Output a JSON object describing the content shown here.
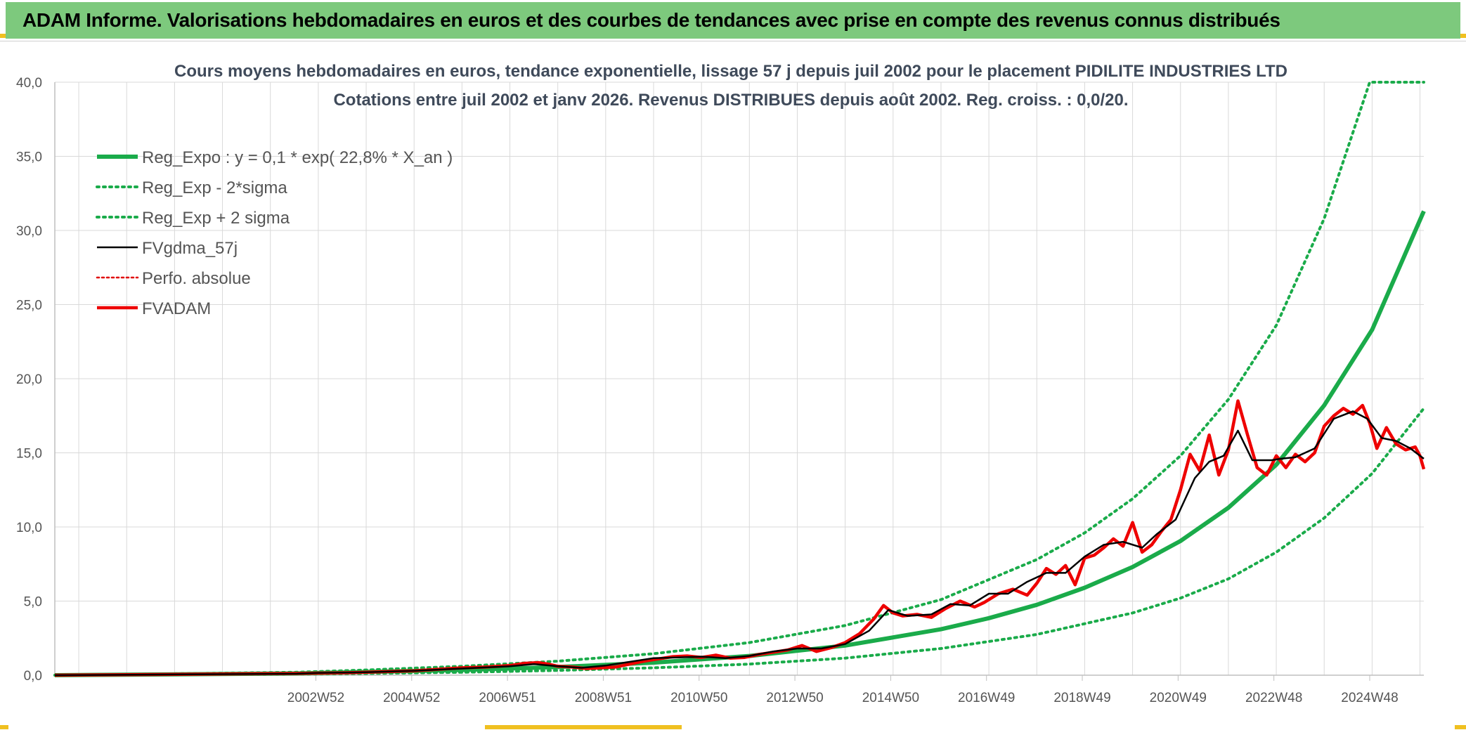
{
  "header": {
    "title": "ADAM Informe. Valorisations hebdomadaires en euros et des courbes de tendances avec prise en compte des revenus connus distribués"
  },
  "colors": {
    "header_bg": "#7dc97d",
    "reg_expo": "#1aab4a",
    "sigma": "#1aab4a",
    "fvgdma": "#000000",
    "perfo": "#e00000",
    "fvadam": "#ee0000",
    "grid": "#d9d9d9",
    "accent": "#f0c020"
  },
  "chart_data": {
    "type": "line",
    "title": "Cours moyens hebdomadaires en euros, tendance exponentielle, lissage 57 j depuis juil 2002 pour le placement PIDILITE INDUSTRIES LTD",
    "subtitle": "Cotations entre juil 2002 et janv 2026. Revenus DISTRIBUES depuis août 2002. Reg. croiss. : 0,0/20.",
    "xlabel": "",
    "ylabel": "",
    "ylim": [
      0,
      40
    ],
    "y_ticks": [
      "0,0",
      "5,0",
      "10,0",
      "15,0",
      "20,0",
      "25,0",
      "30,0",
      "35,0",
      "40,0"
    ],
    "x_range": [
      1997.5,
      2026.08
    ],
    "x_tick_labels": [
      {
        "label": "2002W52",
        "x": 2002.95
      },
      {
        "label": "2004W52",
        "x": 2004.95
      },
      {
        "label": "2006W51",
        "x": 2006.95
      },
      {
        "label": "2008W51",
        "x": 2008.95
      },
      {
        "label": "2010W50",
        "x": 2010.95
      },
      {
        "label": "2012W50",
        "x": 2012.95
      },
      {
        "label": "2014W50",
        "x": 2014.95
      },
      {
        "label": "2016W49",
        "x": 2016.95
      },
      {
        "label": "2018W49",
        "x": 2018.95
      },
      {
        "label": "2020W49",
        "x": 2020.95
      },
      {
        "label": "2022W48",
        "x": 2022.95
      },
      {
        "label": "2024W48",
        "x": 2024.95
      }
    ],
    "legend": {
      "position": "top-left",
      "entries": [
        {
          "key": "reg_expo",
          "label": "Reg_Expo : y = 0,1 * exp( 22,8% *  X_an )",
          "style": "solid-thick"
        },
        {
          "key": "reg_minus",
          "label": "Reg_Exp - 2*sigma",
          "style": "dotted"
        },
        {
          "key": "reg_plus",
          "label": "Reg_Exp + 2 sigma",
          "style": "dotted"
        },
        {
          "key": "fvgdma",
          "label": "FVgdma_57j",
          "style": "solid"
        },
        {
          "key": "perfo",
          "label": "Perfo. absolue",
          "style": "dotted"
        },
        {
          "key": "fvadam",
          "label": "FVADAM",
          "style": "solid-thick"
        }
      ]
    },
    "series": [
      {
        "name": "Reg_Expo : y = 0,1 * exp( 22,8% *  X_an )",
        "key": "reg_expo",
        "x": [
          1997.5,
          2002.55,
          2004,
          2006,
          2008,
          2010,
          2012,
          2014,
          2015,
          2016,
          2017,
          2018,
          2019,
          2020,
          2021,
          2022,
          2023,
          2024,
          2025,
          2026.08
        ],
        "y": [
          0.0,
          0.12,
          0.22,
          0.35,
          0.55,
          0.85,
          1.3,
          2.0,
          2.55,
          3.1,
          3.85,
          4.75,
          5.9,
          7.3,
          9.05,
          11.3,
          14.2,
          18.2,
          23.3,
          31.3
        ]
      },
      {
        "name": "Reg_Exp - 2*sigma",
        "key": "reg_minus",
        "x": [
          1997.5,
          2002.55,
          2004,
          2006,
          2008,
          2010,
          2012,
          2014,
          2016,
          2018,
          2020,
          2021,
          2022,
          2023,
          2024,
          2025,
          2026.08
        ],
        "y": [
          0.0,
          0.07,
          0.12,
          0.2,
          0.32,
          0.5,
          0.75,
          1.15,
          1.8,
          2.75,
          4.2,
          5.2,
          6.5,
          8.3,
          10.6,
          13.6,
          18.0
        ]
      },
      {
        "name": "Reg_Exp + 2 sigma",
        "key": "reg_plus",
        "x": [
          1997.5,
          2002.55,
          2004,
          2006,
          2008,
          2010,
          2012,
          2014,
          2016,
          2018,
          2019,
          2020,
          2021,
          2022,
          2023,
          2024,
          2024.95,
          2026.08
        ],
        "y": [
          0.0,
          0.2,
          0.35,
          0.6,
          0.95,
          1.45,
          2.2,
          3.35,
          5.1,
          7.8,
          9.6,
          11.9,
          14.8,
          18.6,
          23.6,
          30.8,
          40.0,
          40.0
        ]
      },
      {
        "name": "FVgdma_57j",
        "key": "fvgdma",
        "x": [
          1997.5,
          2002.55,
          2003,
          2004,
          2005,
          2006,
          2007,
          2007.5,
          2008,
          2008.5,
          2009,
          2009.5,
          2010,
          2010.5,
          2011,
          2011.5,
          2012,
          2012.5,
          2013,
          2013.5,
          2014,
          2014.5,
          2014.9,
          2015.3,
          2015.8,
          2016.2,
          2016.6,
          2017,
          2017.4,
          2017.8,
          2018.2,
          2018.6,
          2019,
          2019.4,
          2019.8,
          2020.2,
          2020.5,
          2020.9,
          2021.3,
          2021.6,
          2021.9,
          2022.2,
          2022.5,
          2022.9,
          2023.1,
          2023.4,
          2023.8,
          2024.2,
          2024.6,
          2024.9,
          2025.2,
          2025.5,
          2025.8,
          2026.08
        ],
        "y": [
          0.0,
          0.1,
          0.15,
          0.2,
          0.3,
          0.45,
          0.6,
          0.75,
          0.6,
          0.5,
          0.65,
          0.9,
          1.15,
          1.2,
          1.25,
          1.15,
          1.3,
          1.6,
          1.8,
          1.8,
          2.1,
          3.0,
          4.4,
          4.0,
          4.1,
          4.8,
          4.7,
          5.5,
          5.5,
          6.3,
          6.9,
          6.9,
          8.0,
          8.8,
          9.0,
          8.6,
          9.5,
          10.5,
          13.3,
          14.4,
          14.8,
          16.5,
          14.5,
          14.5,
          14.6,
          14.7,
          15.3,
          17.3,
          17.8,
          17.3,
          16.0,
          15.8,
          15.3,
          14.6
        ]
      },
      {
        "name": "Perfo. absolue",
        "key": "perfo",
        "x": [],
        "y": []
      },
      {
        "name": "FVADAM",
        "key": "fvadam",
        "x": [
          1997.5,
          2002.55,
          2003,
          2003.5,
          2004,
          2004.5,
          2005,
          2005.5,
          2006,
          2006.5,
          2007,
          2007.3,
          2007.6,
          2007.8,
          2008,
          2008.3,
          2008.6,
          2008.9,
          2009.2,
          2009.5,
          2009.8,
          2010.1,
          2010.4,
          2010.7,
          2011,
          2011.3,
          2011.6,
          2011.9,
          2012.2,
          2012.5,
          2012.8,
          2013.1,
          2013.4,
          2013.7,
          2014,
          2014.3,
          2014.6,
          2014.8,
          2015,
          2015.2,
          2015.5,
          2015.8,
          2016.1,
          2016.4,
          2016.7,
          2016.9,
          2017.2,
          2017.5,
          2017.8,
          2018.0,
          2018.2,
          2018.4,
          2018.6,
          2018.8,
          2019.0,
          2019.2,
          2019.4,
          2019.6,
          2019.8,
          2020.0,
          2020.2,
          2020.4,
          2020.6,
          2020.8,
          2021.0,
          2021.2,
          2021.4,
          2021.6,
          2021.8,
          2022.0,
          2022.2,
          2022.4,
          2022.6,
          2022.8,
          2023.0,
          2023.2,
          2023.4,
          2023.6,
          2023.8,
          2024.0,
          2024.2,
          2024.4,
          2024.6,
          2024.8,
          2024.95,
          2025.1,
          2025.3,
          2025.5,
          2025.7,
          2025.9,
          2026.0,
          2026.08
        ],
        "y": [
          0.0,
          0.12,
          0.14,
          0.16,
          0.2,
          0.25,
          0.3,
          0.4,
          0.5,
          0.55,
          0.65,
          0.8,
          0.85,
          0.75,
          0.6,
          0.55,
          0.45,
          0.5,
          0.55,
          0.75,
          0.95,
          1.1,
          1.25,
          1.3,
          1.2,
          1.35,
          1.15,
          1.2,
          1.4,
          1.55,
          1.7,
          2.0,
          1.6,
          1.85,
          2.2,
          2.8,
          3.8,
          4.7,
          4.2,
          4.0,
          4.1,
          3.9,
          4.5,
          5.0,
          4.6,
          4.9,
          5.5,
          5.8,
          5.4,
          6.2,
          7.2,
          6.8,
          7.4,
          6.1,
          7.9,
          8.1,
          8.6,
          9.2,
          8.7,
          10.3,
          8.3,
          8.8,
          9.7,
          10.5,
          12.5,
          14.9,
          13.8,
          16.2,
          13.5,
          15.2,
          18.5,
          16.2,
          14.0,
          13.5,
          14.8,
          14.0,
          14.9,
          14.4,
          15.0,
          16.8,
          17.5,
          18.0,
          17.6,
          18.2,
          17.0,
          15.3,
          16.7,
          15.6,
          15.2,
          15.4,
          14.8,
          13.9
        ]
      }
    ]
  }
}
